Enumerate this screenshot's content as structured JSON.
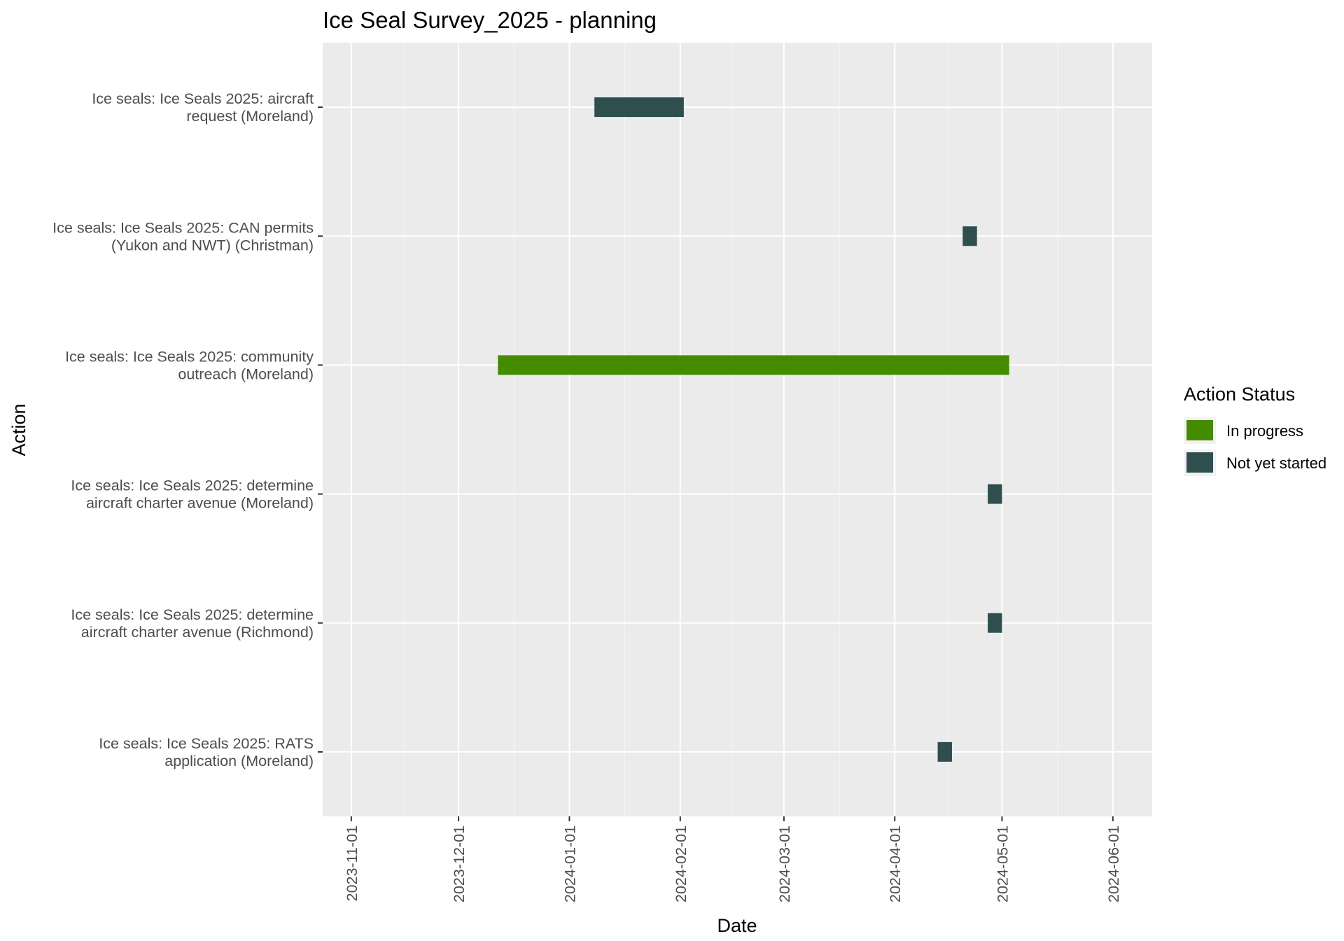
{
  "chart_data": {
    "type": "gantt",
    "title": "Ice Seal Survey_2025 - planning",
    "xlabel": "Date",
    "ylabel": "Action",
    "xlim": [
      "2023-10-24",
      "2024-06-12"
    ],
    "x_ticks": [
      "2023-11-01",
      "2023-12-01",
      "2024-01-01",
      "2024-02-01",
      "2024-03-01",
      "2024-04-01",
      "2024-05-01",
      "2024-06-01"
    ],
    "grid": true,
    "legend": {
      "title": "Action Status",
      "position": "right",
      "entries": [
        {
          "label": "In progress",
          "color": "#458b00"
        },
        {
          "label": "Not yet started",
          "color": "#2f4f4f"
        }
      ]
    },
    "tasks": [
      {
        "label_lines": [
          "Ice seals: Ice Seals 2025: aircraft",
          "request (Moreland)"
        ],
        "start": "2024-01-08",
        "end": "2024-02-02",
        "status": "Not yet started"
      },
      {
        "label_lines": [
          "Ice seals: Ice Seals 2025: CAN permits",
          "(Yukon and NWT) (Christman)"
        ],
        "start": "2024-04-20",
        "end": "2024-04-24",
        "status": "Not yet started"
      },
      {
        "label_lines": [
          "Ice seals: Ice Seals 2025: community",
          "outreach (Moreland)"
        ],
        "start": "2023-12-12",
        "end": "2024-05-03",
        "status": "In progress"
      },
      {
        "label_lines": [
          "Ice seals: Ice Seals 2025: determine",
          "aircraft charter avenue (Moreland)"
        ],
        "start": "2024-04-27",
        "end": "2024-05-01",
        "status": "Not yet started"
      },
      {
        "label_lines": [
          "Ice seals: Ice Seals 2025: determine",
          "aircraft charter avenue (Richmond)"
        ],
        "start": "2024-04-27",
        "end": "2024-05-01",
        "status": "Not yet started"
      },
      {
        "label_lines": [
          "Ice seals: Ice Seals 2025: RATS",
          "application (Moreland)"
        ],
        "start": "2024-04-13",
        "end": "2024-04-17",
        "status": "Not yet started"
      }
    ]
  }
}
